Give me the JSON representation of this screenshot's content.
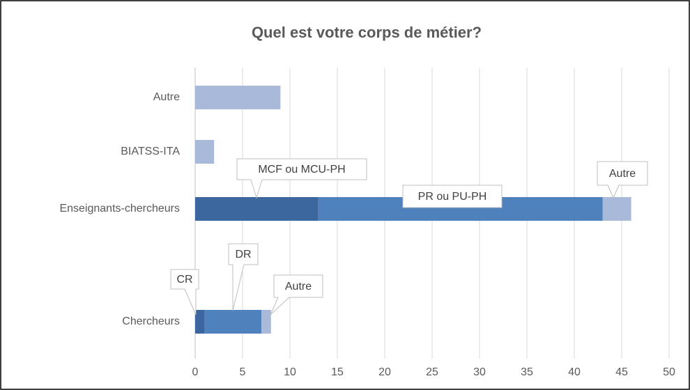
{
  "chart_data": {
    "type": "stacked-barh",
    "title": "Quel est votre corps de métier?",
    "categories": [
      "Chercheurs",
      "Enseignants-chercheurs",
      "BIATSS-ITA",
      "Autre"
    ],
    "series": [
      {
        "color": "#3c679e",
        "values": [
          1,
          13,
          null,
          null
        ],
        "labels": [
          "CR",
          "MCF ou MCU-PH",
          null,
          null
        ]
      },
      {
        "color": "#4f81bd",
        "values": [
          6,
          30,
          null,
          null
        ],
        "labels": [
          "DR",
          "PR ou PU-PH",
          null,
          null
        ]
      },
      {
        "color": "#a9b9d9",
        "values": [
          1,
          3,
          2,
          9
        ],
        "labels": [
          "Autre",
          "Autre",
          null,
          null
        ]
      }
    ],
    "xlim": [
      0,
      50
    ],
    "xticks": [
      0,
      5,
      10,
      15,
      20,
      25,
      30,
      35,
      40,
      45,
      50
    ],
    "grid": true
  }
}
